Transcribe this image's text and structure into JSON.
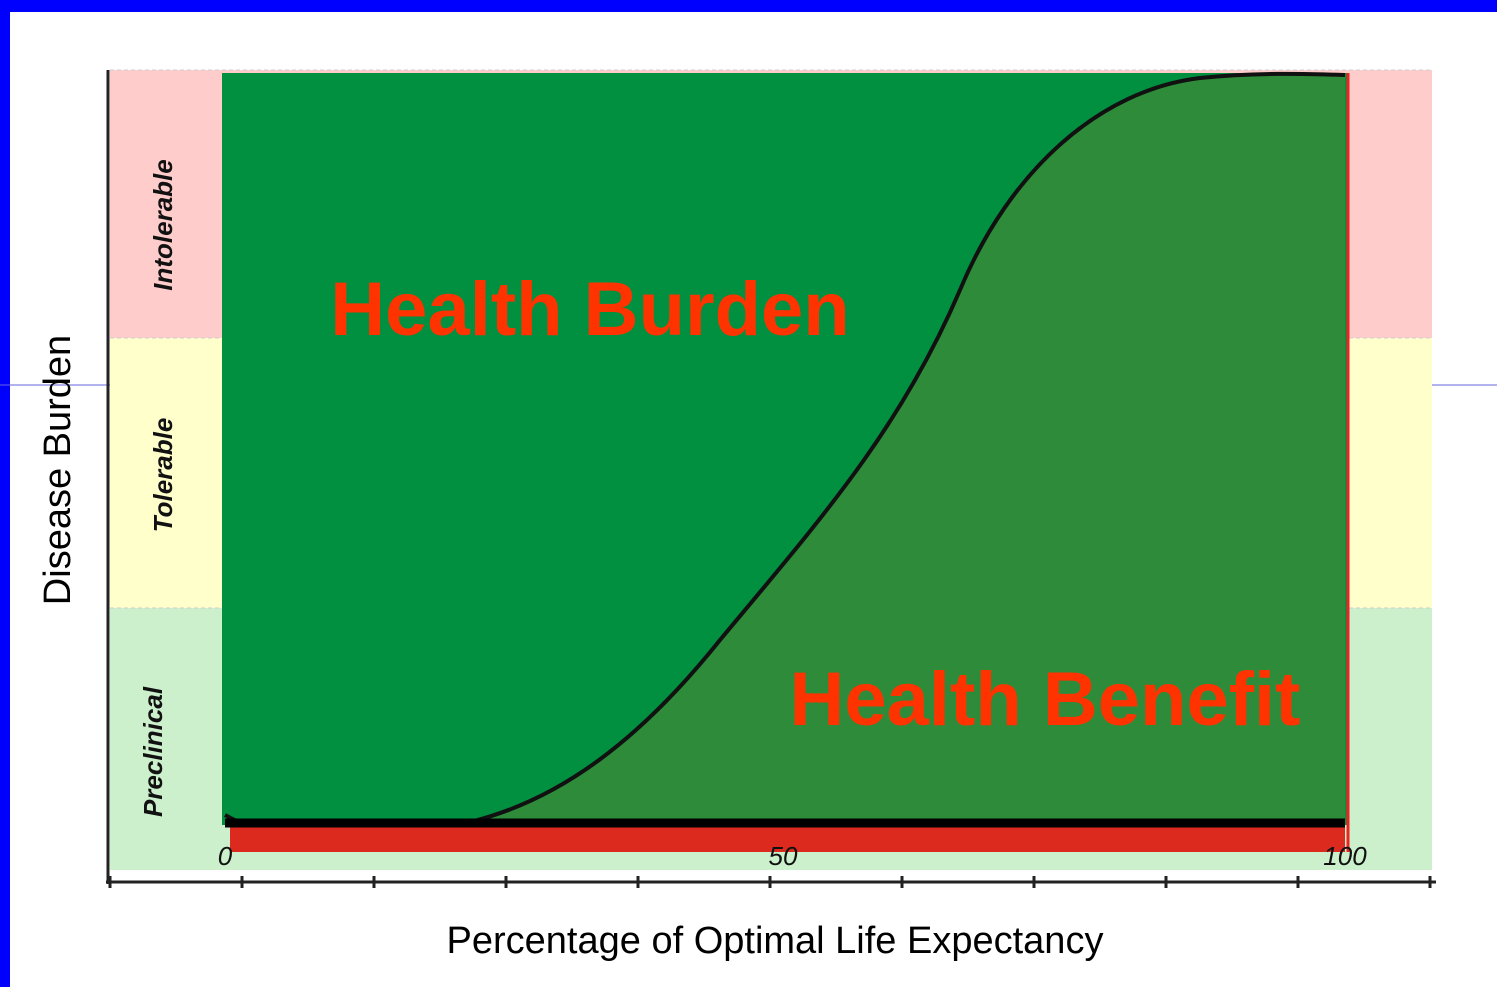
{
  "bands": [
    "Intolerable",
    "Tolerable",
    "Preclinical"
  ],
  "regions": {
    "upper": "Health Burden",
    "lower": "Health Benefit"
  },
  "axes": {
    "y_label": "Disease Burden",
    "x_label": "Percentage of Optimal Life Expectancy",
    "x_ticks": [
      "0",
      "50",
      "100"
    ]
  }
}
